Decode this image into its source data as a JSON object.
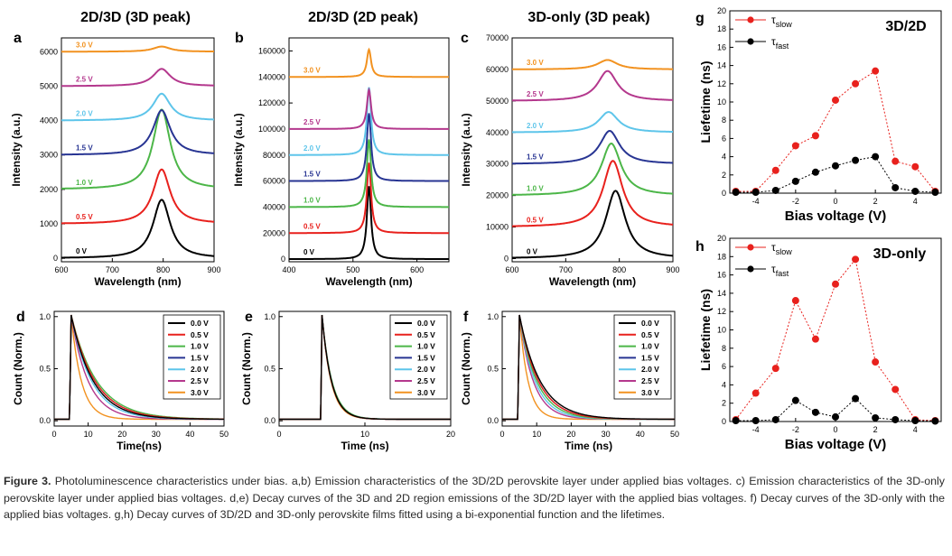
{
  "caption": {
    "label": "Figure 3.",
    "text": "Photoluminescence characteristics under bias. a,b) Emission characteristics of the 3D/2D perovskite layer under applied bias voltages. c) Emission characteristics of the 3D-only perovskite layer under applied bias voltages. d,e) Decay curves of the 3D and 2D region emissions of the 3D/2D layer with the applied bias voltages. f) Decay curves of the 3D-only with the applied bias voltages. g,h) Decay curves of 3D/2D and 3D-only perovskite films fitted using a bi-exponential function and the lifetimes."
  },
  "chart_data": [
    {
      "panel": "a",
      "type": "line",
      "title": "2D/3D (3D peak)",
      "xlabel": "Wavelength (nm)",
      "ylabel": "Intensity (a.u.)",
      "xlim": [
        600,
        900
      ],
      "ylim": [
        -100,
        6400
      ],
      "xticks": [
        600,
        700,
        800,
        900
      ],
      "yticks": [
        0,
        1000,
        2000,
        3000,
        4000,
        5000,
        6000
      ],
      "tick_labels_y": [
        "0",
        "1000",
        "2000",
        "3000",
        "4000",
        "5000",
        "6000"
      ],
      "curve": {
        "shape": "lorentz",
        "center": 797,
        "width": 26
      },
      "series": [
        {
          "name": "0 V",
          "color": "#000000",
          "baseline": 0,
          "peak": 1700
        },
        {
          "name": "0.5 V",
          "color": "#e8211d",
          "baseline": 1000,
          "peak": 1580
        },
        {
          "name": "1.0 V",
          "color": "#4cb648",
          "baseline": 2000,
          "peak": 2320
        },
        {
          "name": "1.5 V",
          "color": "#283593",
          "baseline": 3000,
          "peak": 1300
        },
        {
          "name": "2.0 V",
          "color": "#5ec5ea",
          "baseline": 4000,
          "peak": 780
        },
        {
          "name": "2.5 V",
          "color": "#b4388d",
          "baseline": 5000,
          "peak": 500
        },
        {
          "name": "3.0 V",
          "color": "#f29220",
          "baseline": 6000,
          "peak": 150
        }
      ]
    },
    {
      "panel": "b",
      "type": "line",
      "title": "2D/3D (2D peak)",
      "xlabel": "Wavelength (nm)",
      "ylabel": "Intensity (a.u.)",
      "xlim": [
        400,
        650
      ],
      "ylim": [
        -2000,
        170000
      ],
      "xticks": [
        400,
        500,
        600
      ],
      "yticks": [
        0,
        20000,
        40000,
        60000,
        80000,
        100000,
        120000,
        140000,
        160000
      ],
      "tick_labels_y": [
        "0",
        "20000",
        "40000",
        "60000",
        "80000",
        "100000",
        "120000",
        "140000",
        "160000"
      ],
      "curve": {
        "shape": "lorentz",
        "center": 525,
        "width": 5
      },
      "series": [
        {
          "name": "0 V",
          "color": "#000000",
          "baseline": 0,
          "peak": 56000
        },
        {
          "name": "0.5 V",
          "color": "#e8211d",
          "baseline": 20000,
          "peak": 54000
        },
        {
          "name": "1.0 V",
          "color": "#4cb648",
          "baseline": 40000,
          "peak": 52000
        },
        {
          "name": "1.5 V",
          "color": "#283593",
          "baseline": 60000,
          "peak": 52000
        },
        {
          "name": "2.0 V",
          "color": "#5ec5ea",
          "baseline": 80000,
          "peak": 52000
        },
        {
          "name": "2.5 V",
          "color": "#b4388d",
          "baseline": 100000,
          "peak": 30000
        },
        {
          "name": "3.0 V",
          "color": "#f29220",
          "baseline": 140000,
          "peak": 21000
        }
      ]
    },
    {
      "panel": "c",
      "type": "line",
      "title": "3D-only (3D peak)",
      "xlabel": "Wavelength (nm)",
      "ylabel": "Intensity (a.u.)",
      "xlim": [
        600,
        900
      ],
      "ylim": [
        -1000,
        70000
      ],
      "xticks": [
        600,
        700,
        800,
        900
      ],
      "yticks": [
        0,
        10000,
        20000,
        30000,
        40000,
        50000,
        60000,
        70000
      ],
      "tick_labels_y": [
        "0",
        "10000",
        "20000",
        "30000",
        "40000",
        "50000",
        "60000",
        "70000"
      ],
      "curve": {
        "shape": "lorentz",
        "center": 790,
        "width": 28
      },
      "series": [
        {
          "name": "0 V",
          "color": "#000000",
          "baseline": 0,
          "peak": 21500,
          "center": 793
        },
        {
          "name": "0.5 V",
          "color": "#e8211d",
          "baseline": 10000,
          "peak": 21000,
          "center": 788
        },
        {
          "name": "1.0 V",
          "color": "#4cb648",
          "baseline": 20000,
          "peak": 16500,
          "center": 785
        },
        {
          "name": "1.5 V",
          "color": "#283593",
          "baseline": 30000,
          "peak": 10500,
          "center": 782
        },
        {
          "name": "2.0 V",
          "color": "#5ec5ea",
          "baseline": 40000,
          "peak": 6500,
          "center": 780
        },
        {
          "name": "2.5 V",
          "color": "#b4388d",
          "baseline": 50000,
          "peak": 9500,
          "center": 778
        },
        {
          "name": "3.0 V",
          "color": "#f29220",
          "baseline": 60000,
          "peak": 3000,
          "center": 778
        }
      ]
    },
    {
      "panel": "d",
      "type": "line",
      "xlabel": "Time(ns)",
      "ylabel": "Count (Norm.)",
      "xlim": [
        0,
        50
      ],
      "ylim": [
        -0.05,
        1.05
      ],
      "xticks": [
        0,
        10,
        20,
        30,
        40,
        50
      ],
      "yticks": [
        0,
        0.5,
        1.0
      ],
      "tick_labels_y": [
        "0.0",
        "0.5",
        "1.0"
      ],
      "legend": "top-right",
      "t0": 5,
      "rise": 0.5,
      "series": [
        {
          "name": "0.0 V",
          "color": "#000000",
          "tau": 6.5
        },
        {
          "name": "0.5 V",
          "color": "#e8211d",
          "tau": 7.0
        },
        {
          "name": "1.0 V",
          "color": "#4cb648",
          "tau": 7.5
        },
        {
          "name": "1.5 V",
          "color": "#283593",
          "tau": 7.0
        },
        {
          "name": "2.0 V",
          "color": "#5ec5ea",
          "tau": 6.0
        },
        {
          "name": "2.5 V",
          "color": "#b4388d",
          "tau": 5.0
        },
        {
          "name": "3.0 V",
          "color": "#f29220",
          "tau": 3.0
        }
      ]
    },
    {
      "panel": "e",
      "type": "line",
      "xlabel": "Time (ns)",
      "ylabel": "Count (Norm.)",
      "xlim": [
        0,
        20
      ],
      "ylim": [
        -0.05,
        1.05
      ],
      "xticks": [
        0,
        10,
        20
      ],
      "yticks": [
        0,
        0.5,
        1.0
      ],
      "tick_labels_y": [
        "0.0",
        "0.5",
        "1.0"
      ],
      "legend": "top-right",
      "t0": 5,
      "rise": 0.15,
      "series": [
        {
          "name": "0.0 V",
          "color": "#000000",
          "tau": 1.1
        },
        {
          "name": "0.5 V",
          "color": "#e8211d",
          "tau": 1.1
        },
        {
          "name": "1.0 V",
          "color": "#4cb648",
          "tau": 1.15
        },
        {
          "name": "1.5 V",
          "color": "#283593",
          "tau": 1.1
        },
        {
          "name": "2.0 V",
          "color": "#5ec5ea",
          "tau": 1.15
        },
        {
          "name": "2.5 V",
          "color": "#b4388d",
          "tau": 1.1
        },
        {
          "name": "3.0 V",
          "color": "#f29220",
          "tau": 1.05
        }
      ]
    },
    {
      "panel": "f",
      "type": "line",
      "xlabel": "Time (ns)",
      "ylabel": "Count (Norm.)",
      "xlim": [
        0,
        50
      ],
      "ylim": [
        -0.05,
        1.05
      ],
      "xticks": [
        0,
        10,
        20,
        30,
        40,
        50
      ],
      "yticks": [
        0,
        0.5,
        1.0
      ],
      "tick_labels_y": [
        "0.0",
        "0.5",
        "1.0"
      ],
      "legend": "top-right",
      "t0": 5,
      "rise": 0.5,
      "series": [
        {
          "name": "0.0 V",
          "color": "#000000",
          "tau": 6.0
        },
        {
          "name": "0.5 V",
          "color": "#e8211d",
          "tau": 5.5
        },
        {
          "name": "1.0 V",
          "color": "#4cb648",
          "tau": 5.0
        },
        {
          "name": "1.5 V",
          "color": "#283593",
          "tau": 5.5
        },
        {
          "name": "2.0 V",
          "color": "#5ec5ea",
          "tau": 4.5
        },
        {
          "name": "2.5 V",
          "color": "#b4388d",
          "tau": 4.0
        },
        {
          "name": "3.0 V",
          "color": "#f29220",
          "tau": 2.5
        }
      ]
    },
    {
      "panel": "g",
      "type": "line",
      "title": "3D/2D",
      "xlabel": "Bias voltage (V)",
      "ylabel": "Liefetime (ns)",
      "xlim": [
        -5.3,
        5.3
      ],
      "ylim": [
        0,
        20
      ],
      "xticks": [
        -4,
        -2,
        0,
        2,
        4
      ],
      "yticks": [
        0,
        2,
        4,
        6,
        8,
        10,
        12,
        14,
        16,
        18,
        20
      ],
      "legend": "top-left",
      "x": [
        -5,
        -4,
        -3,
        -2,
        -1,
        0,
        1,
        2,
        3,
        4,
        5
      ],
      "series": [
        {
          "name": "τslow",
          "base": "τ",
          "sub": "slow",
          "color": "#e8211d",
          "y": [
            0.2,
            0.2,
            2.5,
            5.2,
            6.3,
            10.2,
            12.0,
            13.4,
            3.5,
            2.9,
            0.2
          ]
        },
        {
          "name": "τfast",
          "base": "τ",
          "sub": "fast",
          "color": "#000000",
          "y": [
            0.1,
            0.1,
            0.3,
            1.3,
            2.3,
            3.0,
            3.6,
            4.0,
            0.6,
            0.2,
            0.1
          ]
        }
      ]
    },
    {
      "panel": "h",
      "type": "line",
      "title": "3D-only",
      "xlabel": "Bias voltage (V)",
      "ylabel": "Liefetime (ns)",
      "xlim": [
        -5.3,
        5.3
      ],
      "ylim": [
        0,
        20
      ],
      "xticks": [
        -4,
        -2,
        0,
        2,
        4
      ],
      "yticks": [
        0,
        2,
        4,
        6,
        8,
        10,
        12,
        14,
        16,
        18,
        20
      ],
      "legend": "top-left",
      "x": [
        -5,
        -4,
        -3,
        -2,
        -1,
        0,
        1,
        2,
        3,
        4,
        5
      ],
      "series": [
        {
          "name": "τslow",
          "base": "τ",
          "sub": "slow",
          "color": "#e8211d",
          "y": [
            0.2,
            3.1,
            5.8,
            13.2,
            9.0,
            15.0,
            17.7,
            6.5,
            3.5,
            0.2,
            0.1
          ]
        },
        {
          "name": "τfast",
          "base": "τ",
          "sub": "fast",
          "color": "#000000",
          "y": [
            0.1,
            0.1,
            0.2,
            2.3,
            1.0,
            0.5,
            2.5,
            0.4,
            0.2,
            0.1,
            0.05
          ]
        }
      ]
    }
  ]
}
